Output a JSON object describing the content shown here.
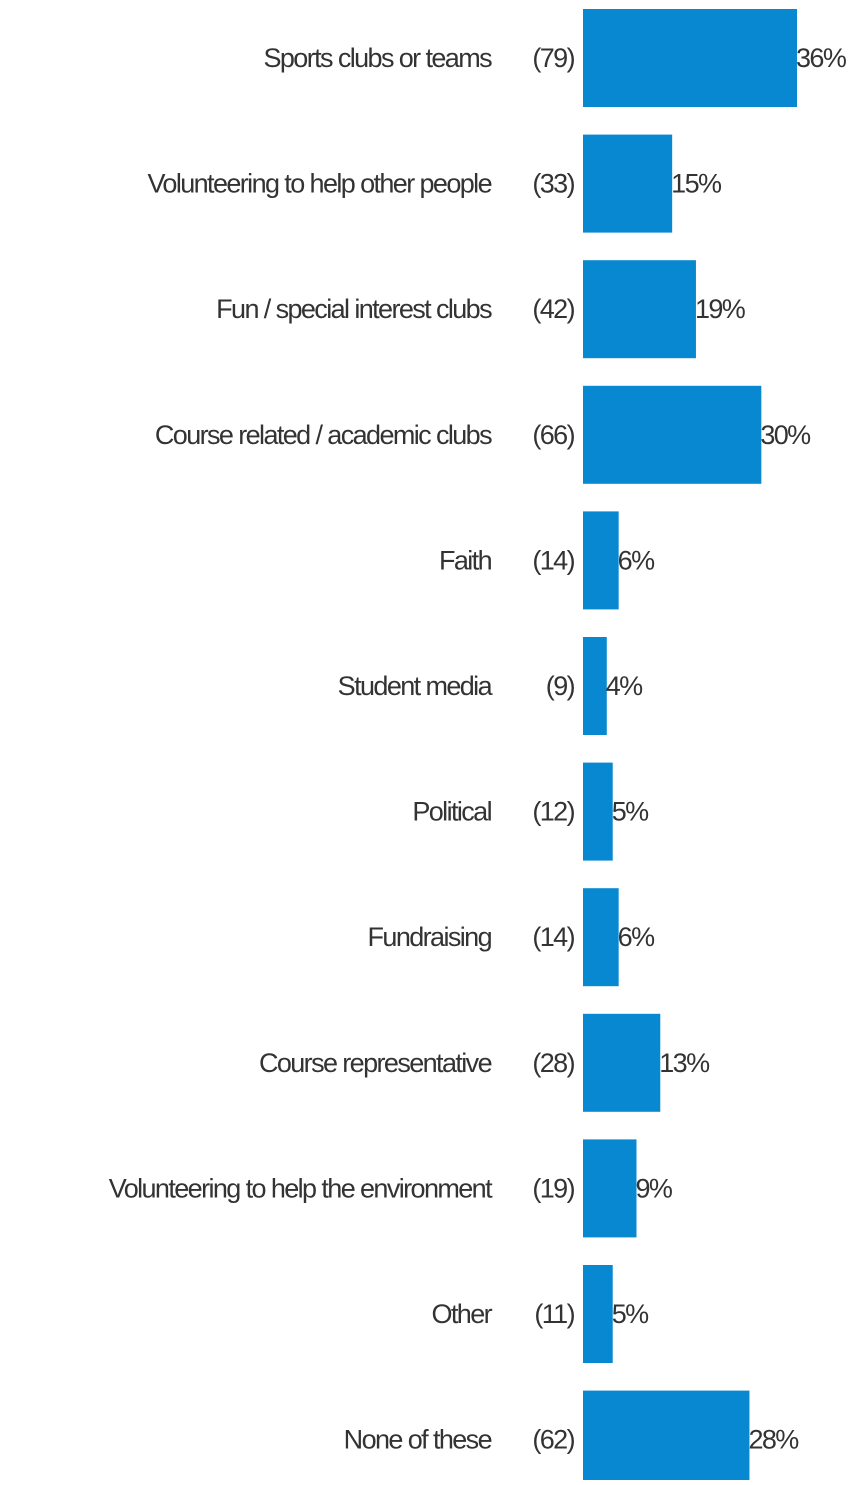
{
  "chart_data": {
    "type": "bar",
    "orientation": "horizontal",
    "bar_color": "#0788d0",
    "text_color": "#333333",
    "grid": false,
    "legend": "none",
    "xlim": [
      0,
      36
    ],
    "categories": [
      "Sports clubs or teams",
      "Volunteering to help other people",
      "Fun / special interest clubs",
      "Course related / academic clubs",
      "Faith",
      "Student media",
      "Political",
      "Fundraising",
      "Course representative",
      "Volunteering to help the environment",
      "Other",
      "None of these"
    ],
    "counts": [
      "(79)",
      "(33)",
      "(42)",
      "(66)",
      "(14)",
      "(9)",
      "(12)",
      "(14)",
      "(28)",
      "(19)",
      "(11)",
      "(62)"
    ],
    "values": [
      36,
      15,
      19,
      30,
      6,
      4,
      5,
      6,
      13,
      9,
      5,
      28
    ],
    "value_labels": [
      "36%",
      "15%",
      "19%",
      "30%",
      "6%",
      "4%",
      "5%",
      "6%",
      "13%",
      "9%",
      "5%",
      "28%"
    ]
  }
}
